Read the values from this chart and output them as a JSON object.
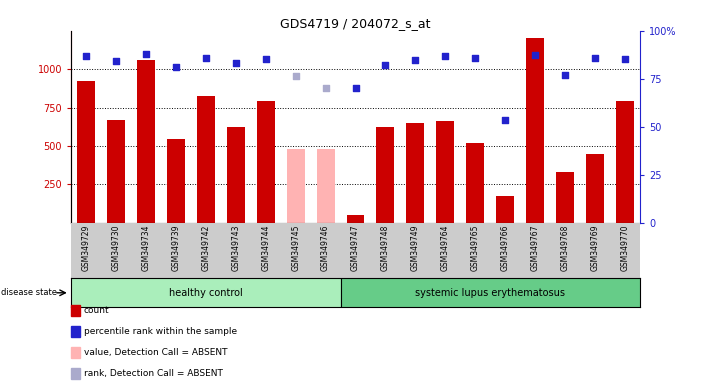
{
  "title": "GDS4719 / 204072_s_at",
  "samples": [
    "GSM349729",
    "GSM349730",
    "GSM349734",
    "GSM349739",
    "GSM349742",
    "GSM349743",
    "GSM349744",
    "GSM349745",
    "GSM349746",
    "GSM349747",
    "GSM349748",
    "GSM349749",
    "GSM349764",
    "GSM349765",
    "GSM349766",
    "GSM349767",
    "GSM349768",
    "GSM349769",
    "GSM349770"
  ],
  "counts": [
    920,
    670,
    1060,
    545,
    825,
    625,
    795,
    null,
    null,
    50,
    620,
    650,
    660,
    520,
    175,
    1200,
    330,
    450,
    790
  ],
  "counts_absent": [
    null,
    null,
    null,
    null,
    null,
    null,
    null,
    480,
    480,
    null,
    null,
    null,
    null,
    null,
    null,
    null,
    null,
    null,
    null
  ],
  "percentile_ranks_raw": [
    1085,
    1055,
    1100,
    1015,
    1070,
    1040,
    1065,
    null,
    null,
    880,
    1025,
    1060,
    1085,
    1070,
    670,
    1095,
    960,
    1075,
    1065
  ],
  "percentile_ranks_absent_raw": [
    null,
    null,
    null,
    null,
    null,
    null,
    null,
    955,
    875,
    null,
    null,
    null,
    null,
    null,
    null,
    null,
    null,
    null,
    null
  ],
  "healthy_count": 9,
  "lupus_count": 10,
  "ylim_left": [
    0,
    1250
  ],
  "ylim_right": [
    0,
    100
  ],
  "yticks_left": [
    250,
    500,
    750,
    1000
  ],
  "yticks_right": [
    0,
    25,
    50,
    75,
    100
  ],
  "bar_color_red": "#cc0000",
  "bar_color_pink": "#ffb3b3",
  "dot_color_blue": "#2222cc",
  "dot_color_lightblue": "#aaaacc",
  "healthy_bg": "#aaeebb",
  "lupus_bg": "#66cc88",
  "xticklabel_bg": "#cccccc",
  "plot_bg": "#ffffff",
  "legend_items": [
    {
      "color": "#cc0000",
      "label": "count",
      "marker": "square"
    },
    {
      "color": "#2222cc",
      "label": "percentile rank within the sample",
      "marker": "square"
    },
    {
      "color": "#ffb3b3",
      "label": "value, Detection Call = ABSENT",
      "marker": "square"
    },
    {
      "color": "#aaaacc",
      "label": "rank, Detection Call = ABSENT",
      "marker": "square"
    }
  ]
}
